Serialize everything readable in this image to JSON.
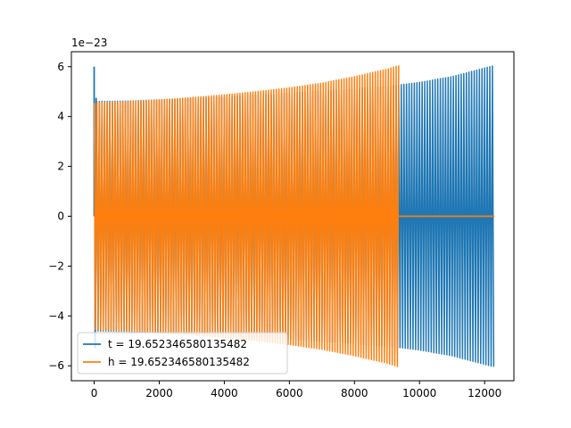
{
  "chart_data": {
    "type": "line",
    "title": "",
    "xlabel": "",
    "ylabel": "",
    "offset_label": "1e−23",
    "xlim": [
      -700,
      12900
    ],
    "ylim": [
      -6.6,
      6.6
    ],
    "x_ticks": [
      0,
      2000,
      4000,
      6000,
      8000,
      10000,
      12000
    ],
    "x_tick_labels": [
      "0",
      "2000",
      "4000",
      "6000",
      "8000",
      "10000",
      "12000"
    ],
    "y_ticks": [
      -6,
      -4,
      -2,
      0,
      2,
      4,
      6
    ],
    "y_tick_labels": [
      "−6",
      "−4",
      "−2",
      "0",
      "2",
      "4",
      "6"
    ],
    "grid": false,
    "legend_position": "lower-left",
    "series": [
      {
        "name": "t = 19.652346580135482",
        "color": "#1f77b4",
        "envelope": {
          "x": [
            0,
            1000,
            2000,
            3000,
            4000,
            5000,
            6000,
            7000,
            8000,
            9000,
            9400,
            10000,
            11000,
            12300
          ],
          "amplitude": [
            4.6,
            4.62,
            4.67,
            4.72,
            4.78,
            4.86,
            4.94,
            5.03,
            5.12,
            5.22,
            5.27,
            5.37,
            5.6,
            6.05
          ]
        },
        "spikes": [
          {
            "x": 0,
            "value": 6.0
          },
          {
            "x": 60,
            "value": 4.75
          },
          {
            "x": 30,
            "value": -5.3
          }
        ],
        "x_end": 12300
      },
      {
        "name": "h = 19.652346580135482",
        "color": "#ff7f0e",
        "envelope": {
          "x": [
            0,
            1000,
            2000,
            3000,
            4000,
            5000,
            6000,
            7000,
            8000,
            9000,
            9370
          ],
          "amplitude": [
            4.55,
            4.6,
            4.67,
            4.76,
            4.87,
            5.0,
            5.15,
            5.34,
            5.6,
            5.9,
            6.05
          ]
        },
        "flat_after": {
          "x_start": 9370,
          "x_end": 12300,
          "value": 0
        },
        "x_end": 9370
      }
    ]
  }
}
